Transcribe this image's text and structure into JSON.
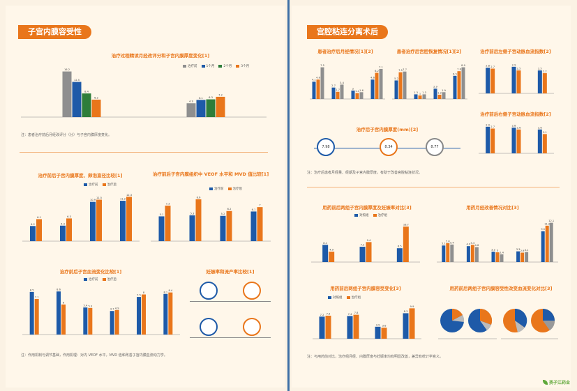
{
  "left": {
    "section_title": "子宫内膜容受性",
    "top_chart_title": "治疗过程精读月经改评分和子宫内膜厚度变化[1]",
    "panel_titles": [
      "治疗前后子宫内膜厚度、卵泡直径比较[1]",
      "治疗前后子宫内膜组织中 VEOF 水平和 MVD 值比较[1]",
      "治疗前后子宫血流变化比较[1]",
      "妊娠率和流产率比较[1]"
    ],
    "top_legend": [
      "治疗前",
      "1个月",
      "2个月",
      "3个月"
    ],
    "pair_legend": [
      "治疗前",
      "治疗后"
    ],
    "notes": [
      "注：患者治疗前后月经改评分（分）与子宫内膜厚度变化。",
      "注：作用机制与调节基础，作用机理：对内 VEOF 水平，MVD 值和改善子宫内膜血流动力学。"
    ],
    "note_prefix": "注："
  },
  "right": {
    "section_title": "宫腔粘连分离术后",
    "panel_titles": [
      "患者治疗后月经情况[1][2]",
      "患者治疗后宫腔恢复情况[1][2]",
      "治疗前后左侧子宫动脉血流指数[2]",
      "治疗前后右侧子宫动脉血流指数[2]",
      "治疗后子宫内膜厚度(mm)[2]",
      "用药前后两组子宫内膜厚度及妊娠率对比[3]",
      "用药月经改善情况对比[3]",
      "用药前后两组子宫内膜容受变化[3]",
      "用药前后两组子宫内膜容受性改变血流变化对比[3]"
    ],
    "group_legend": [
      "对照组",
      "治疗组"
    ],
    "notes": [
      "注：治疗后患者月经量、经期及子宫内膜厚度，有助于改善宫腔粘连状况。",
      "注：与用药前对比，治疗组月经、内膜厚度与妊娠率均有明显改善，差异有统计学意义。"
    ],
    "thickness_values": [
      "7.98",
      "8.34",
      "8.77"
    ]
  },
  "logo_text": "扬子江药业",
  "chart_data": [
    {
      "type": "bar",
      "title": "治疗过程精读月经改评分和子宫内膜厚度变化[1]",
      "categories": [
        "月经改评分",
        "子宫内膜厚度"
      ],
      "series": [
        {
          "name": "治疗前",
          "values": [
            16.2,
            4.9
          ]
        },
        {
          "name": "1个月",
          "values": [
            12.5,
            6.1
          ]
        },
        {
          "name": "2个月",
          "values": [
            8.4,
            6.3
          ]
        },
        {
          "name": "3个月",
          "values": [
            6.2,
            7.2
          ]
        }
      ]
    },
    {
      "type": "bar",
      "title": "治疗前后子宫内膜厚度、卵泡直径比较[1]",
      "categories": [
        "1",
        "2",
        "3",
        "4"
      ],
      "series": [
        {
          "name": "治疗前",
          "values": [
            4.2,
            4.3,
            10.9,
            11.2
          ]
        },
        {
          "name": "治疗后",
          "values": [
            6.1,
            6.3,
            11.5,
            12.3
          ]
        }
      ]
    },
    {
      "type": "bar",
      "title": "治疗前后子宫内膜组织中 VEOF 水平和 MVD 值比较[1]",
      "categories": [
        "1",
        "2",
        "3",
        "4"
      ],
      "series": [
        {
          "name": "治疗前",
          "values": [
            5.1,
            5.3,
            5.2,
            6.1
          ]
        },
        {
          "name": "治疗后",
          "values": [
            7.3,
            8.6,
            6.2,
            7.0
          ]
        }
      ]
    },
    {
      "type": "bar",
      "title": "治疗前后子宫血流变化比较[1]",
      "categories": [
        "1",
        "2",
        "3",
        "4",
        "5",
        "6"
      ],
      "series": [
        {
          "name": "治疗前",
          "values": [
            8.5,
            8.6,
            5.4,
            4.7,
            7.5,
            8.1
          ]
        },
        {
          "name": "治疗后",
          "values": [
            7.1,
            6.0,
            5.3,
            4.9,
            8.0,
            8.4
          ]
        }
      ]
    },
    {
      "type": "bar",
      "title": "患者治疗后月经情况[1][2]",
      "categories": [
        "经期",
        "周期",
        "经量",
        "月经总评"
      ],
      "series": [
        {
          "name": "治疗前",
          "values": [
            4.1,
            2.7,
            2.0,
            4.6
          ]
        },
        {
          "name": "治疗后",
          "values": [
            4.6,
            1.7,
            1.4,
            6.2
          ]
        },
        {
          "name": "对照",
          "values": [
            7.5,
            3.4,
            1.6,
            7.1
          ]
        }
      ]
    },
    {
      "type": "bar",
      "title": "患者治疗后宫腔恢复情况[1][2]",
      "categories": [
        "1",
        "2",
        "3",
        "4"
      ],
      "series": [
        {
          "name": "治疗前",
          "values": [
            5.2,
            1.3,
            2.9,
            6.5
          ]
        },
        {
          "name": "治疗后",
          "values": [
            7.5,
            1.0,
            1.2,
            7.8
          ]
        },
        {
          "name": "对照",
          "values": [
            7.7,
            1.3,
            1.9,
            8.9
          ]
        }
      ]
    },
    {
      "type": "bar",
      "title": "治疗前后左侧子宫动脉血流指数[2]",
      "categories": [
        "1",
        "2",
        "3"
      ],
      "series": [
        {
          "name": "治疗前",
          "values": [
            2.8,
            2.9,
            2.5
          ]
        },
        {
          "name": "治疗后",
          "values": [
            2.7,
            2.5,
            2.2
          ]
        }
      ]
    },
    {
      "type": "bar",
      "title": "治疗前后右侧子宫动脉血流指数[2]",
      "categories": [
        "1",
        "2",
        "3"
      ],
      "series": [
        {
          "name": "治疗前",
          "values": [
            2.9,
            2.8,
            2.6
          ]
        },
        {
          "name": "治疗后",
          "values": [
            2.7,
            2.6,
            2.1
          ]
        }
      ]
    },
    {
      "type": "bar",
      "title": "用药前后两组子宫内膜厚度及妊娠率对比[3]",
      "categories": [
        "1",
        "2",
        "3"
      ],
      "series": [
        {
          "name": "对照组",
          "values": [
            8.1,
            7.2,
            6.5
          ]
        },
        {
          "name": "治疗组",
          "values": [
            4.9,
            9.4,
            16.7
          ]
        }
      ]
    },
    {
      "type": "bar",
      "title": "用药月经改善情况对比[3]",
      "categories": [
        "1",
        "2",
        "3",
        "4",
        "5"
      ],
      "series": [
        {
          "name": "对照组",
          "values": [
            5.1,
            4.9,
            3.2,
            3.3,
            9.5
          ]
        },
        {
          "name": "治疗组",
          "values": [
            5.8,
            5.3,
            3.0,
            2.9,
            11.2
          ]
        },
        {
          "name": "治疗组2",
          "values": [
            5.4,
            4.6,
            2.4,
            3.1,
            12.1
          ]
        }
      ]
    },
    {
      "type": "bar",
      "title": "用药前后两组子宫内膜容受变化[3]",
      "categories": [
        "1",
        "2",
        "3",
        "4"
      ],
      "series": [
        {
          "name": "对照组",
          "values": [
            7.2,
            7.4,
            3.9,
            8.3
          ]
        },
        {
          "name": "治疗组",
          "values": [
            7.5,
            7.8,
            3.6,
            9.9
          ]
        }
      ]
    }
  ]
}
